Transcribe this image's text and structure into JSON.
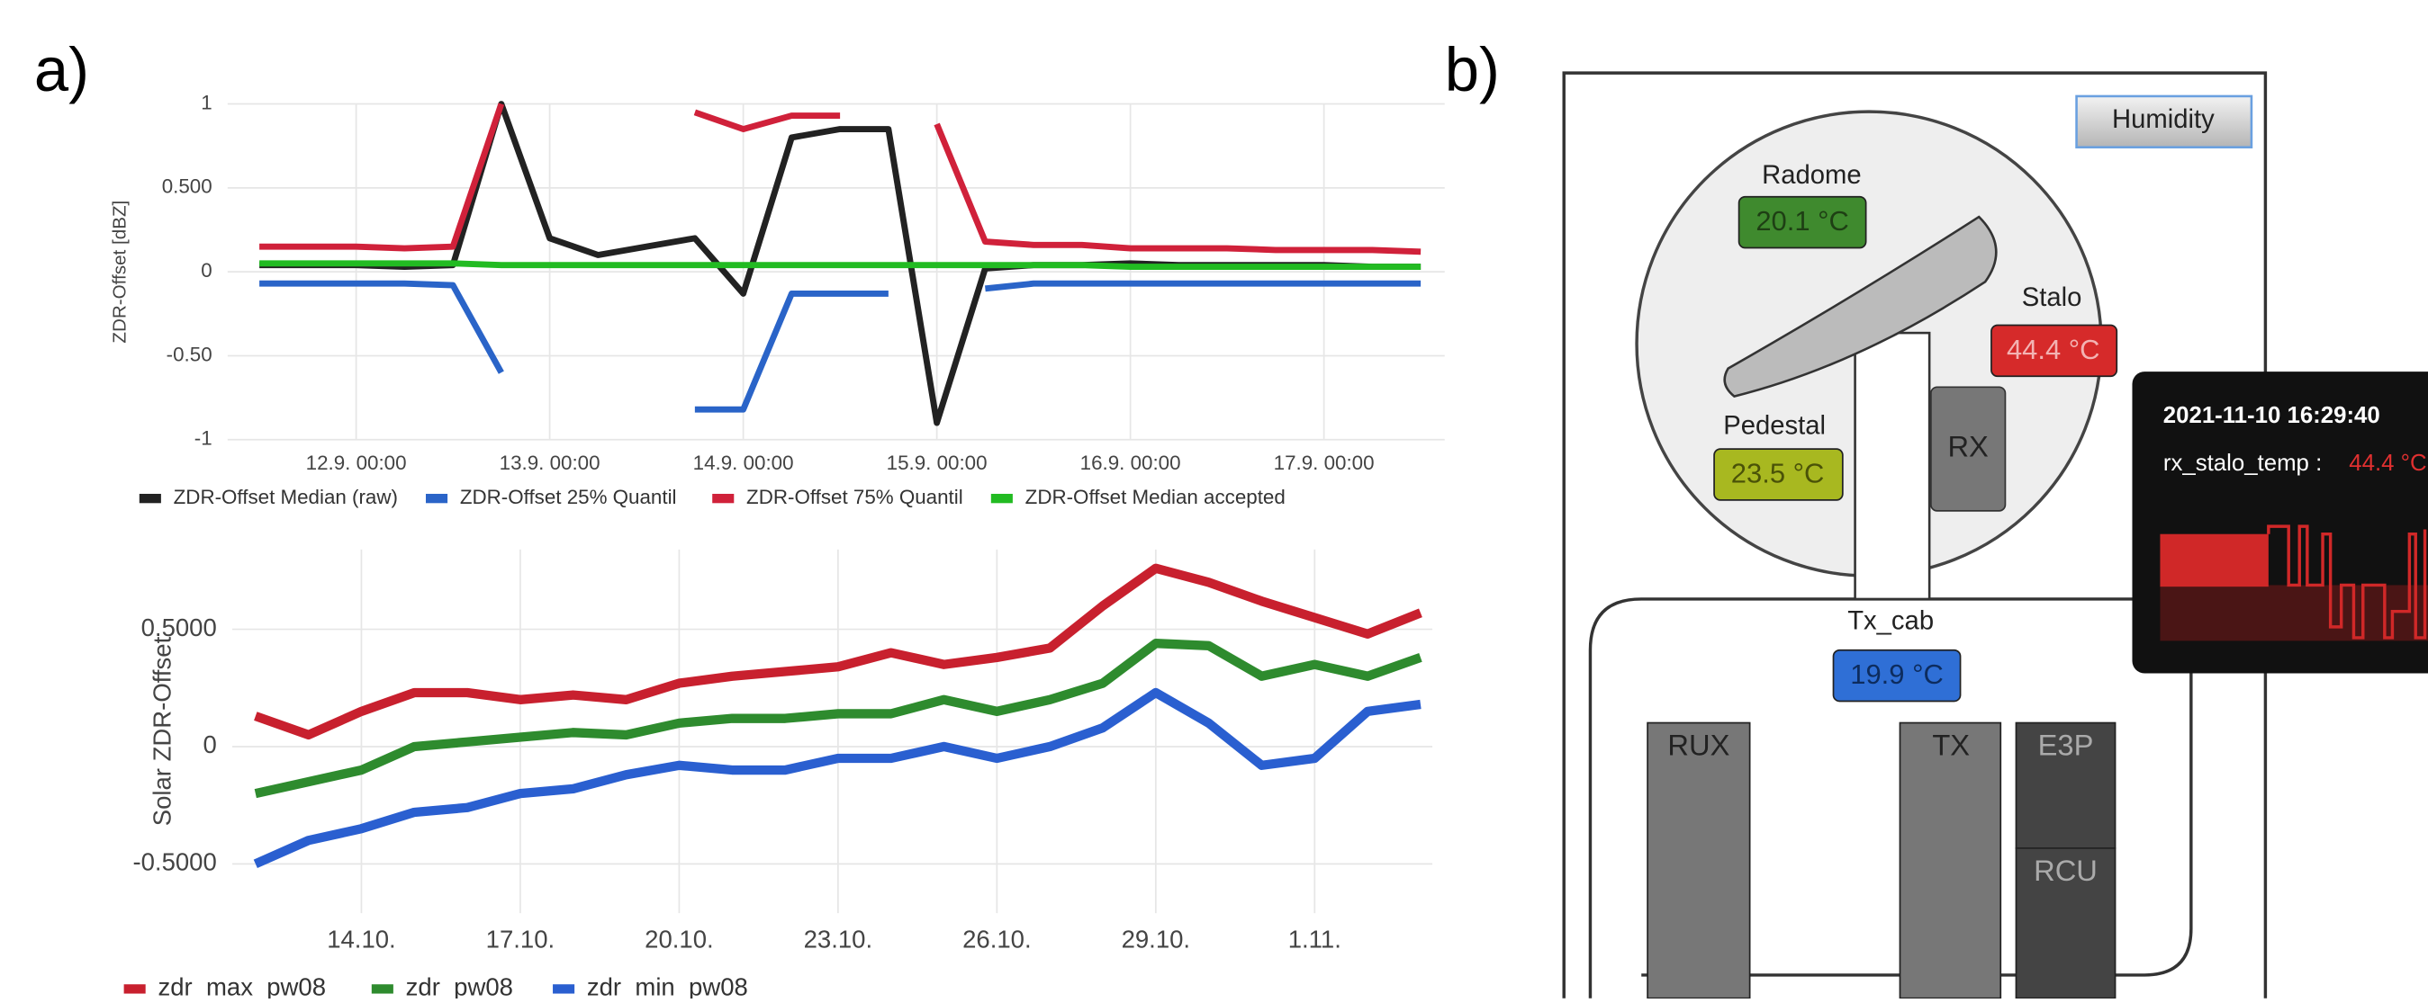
{
  "panel_labels": [
    "a)",
    "b)"
  ],
  "chart_data": [
    {
      "type": "line",
      "y_label": "ZDR-Offset [dBZ]",
      "categories": [
        null,
        null,
        "12.9. 00:00",
        null,
        null,
        null,
        "13.9. 00:00",
        null,
        null,
        null,
        "14.9. 00:00",
        null,
        null,
        null,
        "15.9. 00:00",
        null,
        null,
        null,
        "16.9. 00:00",
        null,
        null,
        null,
        "17.9. 00:00",
        null,
        null
      ],
      "series": [
        {
          "name": "ZDR-Offset Median (raw)",
          "color": "#222222",
          "values": [
            0.04,
            0.04,
            0.04,
            0.03,
            0.04,
            1,
            0.2,
            0.1,
            0.15,
            0.2,
            -0.13,
            0.8,
            0.85,
            0.85,
            -0.9,
            0.02,
            0.04,
            0.04,
            0.05,
            0.04,
            0.04,
            0.04,
            0.04,
            0.03,
            0.03
          ]
        },
        {
          "name": "ZDR-Offset 25% Quantil",
          "color": "#2a64c8",
          "values": [
            -0.07,
            -0.07,
            -0.07,
            -0.07,
            -0.08,
            -0.6,
            null,
            null,
            null,
            -0.82,
            -0.82,
            -0.13,
            -0.13,
            -0.13,
            null,
            -0.1,
            -0.07,
            -0.07,
            -0.07,
            -0.07,
            -0.07,
            -0.07,
            -0.07,
            -0.07,
            -0.07
          ]
        },
        {
          "name": "ZDR-Offset 75% Quantil",
          "color": "#d0213a",
          "values": [
            0.15,
            0.15,
            0.15,
            0.14,
            0.15,
            1,
            null,
            null,
            null,
            0.95,
            0.85,
            0.93,
            0.93,
            null,
            0.88,
            0.18,
            0.16,
            0.16,
            0.14,
            0.14,
            0.14,
            0.13,
            0.13,
            0.13,
            0.12
          ]
        },
        {
          "name": "ZDR-Offset Median accepted",
          "color": "#22bb22",
          "values": [
            0.05,
            0.05,
            0.05,
            0.05,
            0.05,
            0.04,
            0.04,
            0.04,
            0.04,
            0.04,
            0.04,
            0.04,
            0.04,
            0.04,
            0.04,
            0.04,
            0.04,
            0.04,
            0.03,
            0.03,
            0.03,
            0.03,
            0.03,
            0.03,
            0.03
          ]
        }
      ],
      "ylim": [
        -1,
        1
      ],
      "yticks": [
        1,
        {
          "value": 0.5,
          "label": "0.500"
        },
        0,
        {
          "value": -0.5,
          "label": "-0.50"
        },
        -1
      ],
      "grid": true,
      "legend": "bottom"
    },
    {
      "type": "line",
      "y_label": "Solar ZDR-Offset",
      "categories": [
        null,
        null,
        "14.10.",
        null,
        null,
        "17.10.",
        null,
        null,
        "20.10.",
        null,
        null,
        "23.10.",
        null,
        null,
        "26.10.",
        null,
        null,
        "29.10.",
        null,
        null,
        "1.11.",
        null,
        null
      ],
      "series": [
        {
          "name": "zdr_max_pw08",
          "color": "#c8202e",
          "values": [
            0.13,
            0.05,
            0.15,
            0.23,
            0.23,
            0.2,
            0.22,
            0.2,
            0.27,
            0.3,
            0.32,
            0.34,
            0.4,
            0.35,
            0.38,
            0.42,
            0.6,
            0.76,
            0.7,
            0.62,
            0.55,
            0.48,
            0.57
          ]
        },
        {
          "name": "zdr_pw08",
          "color": "#2e8b2e",
          "values": [
            -0.2,
            -0.15,
            -0.1,
            0,
            0.02,
            0.04,
            0.06,
            0.05,
            0.1,
            0.12,
            0.12,
            0.14,
            0.14,
            0.2,
            0.15,
            0.2,
            0.27,
            0.44,
            0.43,
            0.3,
            0.35,
            0.3,
            0.38
          ]
        },
        {
          "name": "zdr_min_pw08",
          "color": "#2a5fd0",
          "values": [
            -0.5,
            -0.4,
            -0.35,
            -0.28,
            -0.26,
            -0.2,
            -0.18,
            -0.12,
            -0.08,
            -0.1,
            -0.1,
            -0.05,
            -0.05,
            0,
            -0.05,
            0,
            0.08,
            0.23,
            0.1,
            -0.08,
            -0.05,
            0.15,
            0.18
          ]
        }
      ],
      "ylim": [
        -0.71,
        0.84
      ],
      "yticks": [
        {
          "value": 0.5,
          "label": "0.5000"
        },
        0,
        {
          "value": -0.5,
          "label": "-0.5000"
        }
      ],
      "grid": true,
      "legend": "bottom"
    }
  ],
  "diagram": {
    "button": "Humidity",
    "sensors": [
      {
        "label": "Radome",
        "value": "20.1 °C"
      },
      {
        "label": "Stalo",
        "value": "44.4 °C"
      },
      {
        "label": "Pedestal",
        "value": "23.5 °C"
      },
      {
        "label": "Tx_cab",
        "value": "19.9 °C"
      }
    ],
    "units": [
      "RX",
      "RUX",
      "TX",
      "E3P",
      "RCU"
    ],
    "tooltip": {
      "time": "2021-11-10 16:29:40",
      "metric": "rx_stalo_temp : ",
      "value": "44.4 °C"
    }
  }
}
